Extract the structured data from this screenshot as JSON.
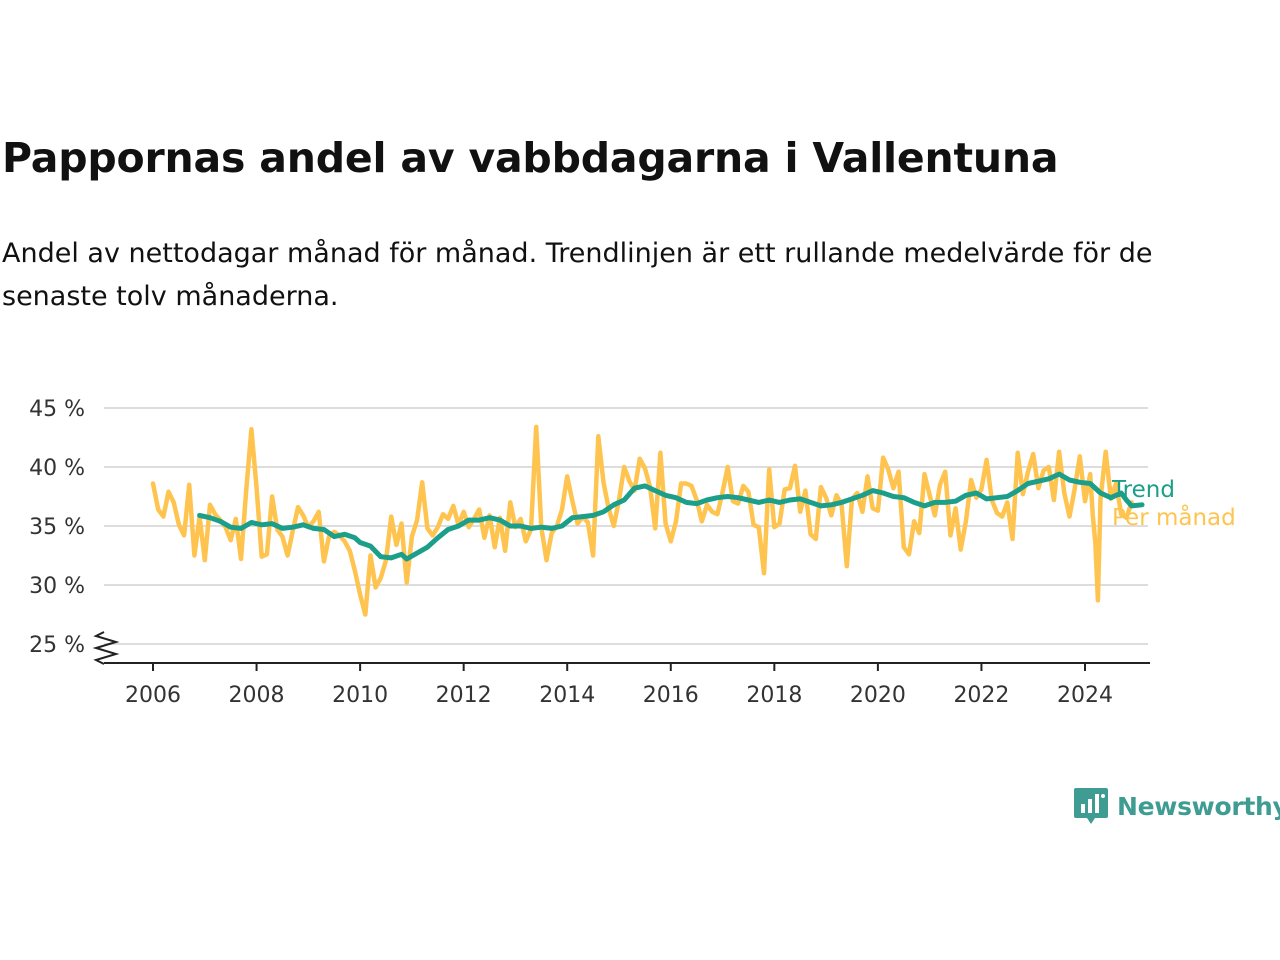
{
  "page": {
    "title": "Pappornas andel av vabbdagarna i Vallentuna",
    "subtitle": "Andel av nettodagar månad för månad. Trendlinjen är ett rullande medelvärde för de senaste tolv månaderna."
  },
  "brand": {
    "name": "Newsworthy",
    "icon": "newsworthy-logo-icon",
    "color": "#3e9c92"
  },
  "chart_data": {
    "type": "line",
    "x_unit": "year",
    "ylim": [
      25,
      45
    ],
    "xlim": [
      2005.7,
      2025.2
    ],
    "y_ticks": [
      {
        "value": 25,
        "label": "25 %"
      },
      {
        "value": 30,
        "label": "30 %"
      },
      {
        "value": 35,
        "label": "35 %"
      },
      {
        "value": 40,
        "label": "40 %"
      },
      {
        "value": 45,
        "label": "45 %"
      }
    ],
    "x_ticks": [
      {
        "value": 2006,
        "label": "2006"
      },
      {
        "value": 2008,
        "label": "2008"
      },
      {
        "value": 2010,
        "label": "2010"
      },
      {
        "value": 2012,
        "label": "2012"
      },
      {
        "value": 2014,
        "label": "2014"
      },
      {
        "value": 2016,
        "label": "2016"
      },
      {
        "value": 2018,
        "label": "2018"
      },
      {
        "value": 2020,
        "label": "2020"
      },
      {
        "value": 2022,
        "label": "2022"
      },
      {
        "value": 2024,
        "label": "2024"
      }
    ],
    "y_axis_break": true,
    "grid": "horizontal",
    "legend": "direct-labels-right",
    "series": [
      {
        "name": "Per månad",
        "color": "#fec44f",
        "points": [
          [
            2006.0,
            38.6
          ],
          [
            2006.1,
            36.4
          ],
          [
            2006.2,
            35.8
          ],
          [
            2006.3,
            37.9
          ],
          [
            2006.4,
            37.0
          ],
          [
            2006.5,
            35.1
          ],
          [
            2006.6,
            34.2
          ],
          [
            2006.7,
            38.5
          ],
          [
            2006.8,
            32.5
          ],
          [
            2006.9,
            35.8
          ],
          [
            2007.0,
            32.1
          ],
          [
            2007.1,
            36.8
          ],
          [
            2007.2,
            36.0
          ],
          [
            2007.3,
            35.5
          ],
          [
            2007.4,
            34.9
          ],
          [
            2007.5,
            33.8
          ],
          [
            2007.6,
            35.6
          ],
          [
            2007.7,
            32.2
          ],
          [
            2007.8,
            38.0
          ],
          [
            2007.9,
            43.2
          ],
          [
            2008.0,
            38.2
          ],
          [
            2008.1,
            32.4
          ],
          [
            2008.2,
            32.6
          ],
          [
            2008.3,
            37.5
          ],
          [
            2008.4,
            34.7
          ],
          [
            2008.5,
            34.1
          ],
          [
            2008.6,
            32.5
          ],
          [
            2008.7,
            34.6
          ],
          [
            2008.8,
            36.6
          ],
          [
            2008.9,
            35.9
          ],
          [
            2009.0,
            34.9
          ],
          [
            2009.1,
            35.4
          ],
          [
            2009.2,
            36.2
          ],
          [
            2009.3,
            32.0
          ],
          [
            2009.4,
            34.1
          ],
          [
            2009.5,
            34.5
          ],
          [
            2009.6,
            34.2
          ],
          [
            2009.7,
            33.7
          ],
          [
            2009.8,
            32.9
          ],
          [
            2009.9,
            31.2
          ],
          [
            2010.0,
            29.2
          ],
          [
            2010.1,
            27.5
          ],
          [
            2010.2,
            32.5
          ],
          [
            2010.3,
            29.8
          ],
          [
            2010.4,
            30.6
          ],
          [
            2010.5,
            32.1
          ],
          [
            2010.6,
            35.8
          ],
          [
            2010.7,
            33.4
          ],
          [
            2010.8,
            35.2
          ],
          [
            2010.9,
            30.2
          ],
          [
            2011.0,
            34.1
          ],
          [
            2011.1,
            35.5
          ],
          [
            2011.2,
            38.7
          ],
          [
            2011.3,
            34.8
          ],
          [
            2011.4,
            34.2
          ],
          [
            2011.5,
            34.9
          ],
          [
            2011.6,
            36.0
          ],
          [
            2011.7,
            35.6
          ],
          [
            2011.8,
            36.7
          ],
          [
            2011.9,
            35.1
          ],
          [
            2012.0,
            36.2
          ],
          [
            2012.1,
            34.9
          ],
          [
            2012.2,
            35.6
          ],
          [
            2012.3,
            36.4
          ],
          [
            2012.4,
            34.0
          ],
          [
            2012.5,
            35.9
          ],
          [
            2012.6,
            33.2
          ],
          [
            2012.7,
            35.7
          ],
          [
            2012.8,
            32.9
          ],
          [
            2012.9,
            37.0
          ],
          [
            2013.0,
            34.9
          ],
          [
            2013.1,
            35.6
          ],
          [
            2013.2,
            33.7
          ],
          [
            2013.3,
            34.7
          ],
          [
            2013.4,
            43.4
          ],
          [
            2013.5,
            34.9
          ],
          [
            2013.6,
            32.1
          ],
          [
            2013.7,
            34.4
          ],
          [
            2013.8,
            35.0
          ],
          [
            2013.9,
            36.4
          ],
          [
            2014.0,
            39.2
          ],
          [
            2014.1,
            37.1
          ],
          [
            2014.2,
            35.2
          ],
          [
            2014.3,
            35.8
          ],
          [
            2014.4,
            35.3
          ],
          [
            2014.5,
            32.5
          ],
          [
            2014.6,
            42.6
          ],
          [
            2014.7,
            38.7
          ],
          [
            2014.8,
            36.5
          ],
          [
            2014.9,
            35.0
          ],
          [
            2015.0,
            37.2
          ],
          [
            2015.1,
            40.0
          ],
          [
            2015.2,
            38.8
          ],
          [
            2015.3,
            38.0
          ],
          [
            2015.4,
            40.7
          ],
          [
            2015.5,
            39.9
          ],
          [
            2015.6,
            38.3
          ],
          [
            2015.7,
            34.8
          ],
          [
            2015.8,
            41.2
          ],
          [
            2015.9,
            35.2
          ],
          [
            2016.0,
            33.7
          ],
          [
            2016.1,
            35.4
          ],
          [
            2016.2,
            38.6
          ],
          [
            2016.3,
            38.6
          ],
          [
            2016.4,
            38.4
          ],
          [
            2016.5,
            37.2
          ],
          [
            2016.6,
            35.4
          ],
          [
            2016.7,
            36.8
          ],
          [
            2016.8,
            36.2
          ],
          [
            2016.9,
            36.0
          ],
          [
            2017.0,
            37.9
          ],
          [
            2017.1,
            40.0
          ],
          [
            2017.2,
            37.1
          ],
          [
            2017.3,
            36.9
          ],
          [
            2017.4,
            38.4
          ],
          [
            2017.5,
            37.9
          ],
          [
            2017.6,
            35.1
          ],
          [
            2017.7,
            34.9
          ],
          [
            2017.8,
            31.0
          ],
          [
            2017.9,
            39.8
          ],
          [
            2018.0,
            34.9
          ],
          [
            2018.1,
            35.2
          ],
          [
            2018.2,
            38.1
          ],
          [
            2018.3,
            38.2
          ],
          [
            2018.4,
            40.1
          ],
          [
            2018.5,
            36.2
          ],
          [
            2018.6,
            38.0
          ],
          [
            2018.7,
            34.3
          ],
          [
            2018.8,
            33.9
          ],
          [
            2018.9,
            38.3
          ],
          [
            2019.0,
            37.4
          ],
          [
            2019.1,
            35.9
          ],
          [
            2019.2,
            37.6
          ],
          [
            2019.3,
            36.8
          ],
          [
            2019.4,
            31.6
          ],
          [
            2019.5,
            37.3
          ],
          [
            2019.6,
            37.8
          ],
          [
            2019.7,
            36.2
          ],
          [
            2019.8,
            39.2
          ],
          [
            2019.9,
            36.5
          ],
          [
            2020.0,
            36.3
          ],
          [
            2020.1,
            40.8
          ],
          [
            2020.2,
            39.8
          ],
          [
            2020.3,
            38.2
          ],
          [
            2020.4,
            39.6
          ],
          [
            2020.5,
            33.2
          ],
          [
            2020.6,
            32.6
          ],
          [
            2020.7,
            35.4
          ],
          [
            2020.8,
            34.4
          ],
          [
            2020.9,
            39.4
          ],
          [
            2021.0,
            37.6
          ],
          [
            2021.1,
            35.9
          ],
          [
            2021.2,
            38.5
          ],
          [
            2021.3,
            39.6
          ],
          [
            2021.4,
            34.2
          ],
          [
            2021.5,
            36.5
          ],
          [
            2021.6,
            33.0
          ],
          [
            2021.7,
            35.4
          ],
          [
            2021.8,
            38.9
          ],
          [
            2021.9,
            37.4
          ],
          [
            2022.0,
            38.1
          ],
          [
            2022.1,
            40.6
          ],
          [
            2022.2,
            37.2
          ],
          [
            2022.3,
            36.1
          ],
          [
            2022.4,
            35.8
          ],
          [
            2022.5,
            37.0
          ],
          [
            2022.6,
            33.9
          ],
          [
            2022.7,
            41.2
          ],
          [
            2022.8,
            37.7
          ],
          [
            2022.9,
            39.6
          ],
          [
            2023.0,
            41.1
          ],
          [
            2023.1,
            38.2
          ],
          [
            2023.2,
            39.7
          ],
          [
            2023.3,
            40.0
          ],
          [
            2023.4,
            37.2
          ],
          [
            2023.5,
            41.3
          ],
          [
            2023.6,
            37.8
          ],
          [
            2023.7,
            35.8
          ],
          [
            2023.8,
            38.1
          ],
          [
            2023.9,
            40.9
          ],
          [
            2024.0,
            37.1
          ],
          [
            2024.1,
            39.4
          ],
          [
            2024.15,
            35.9
          ],
          [
            2024.2,
            33.5
          ],
          [
            2024.25,
            28.7
          ],
          [
            2024.3,
            37.3
          ],
          [
            2024.4,
            41.3
          ],
          [
            2024.5,
            37.3
          ],
          [
            2024.6,
            38.6
          ],
          [
            2024.7,
            36.0
          ],
          [
            2024.8,
            35.7
          ],
          [
            2024.9,
            37.0
          ]
        ]
      },
      {
        "name": "Trend",
        "color": "#1b9e8a",
        "points": [
          [
            2006.9,
            35.9
          ],
          [
            2007.1,
            35.7
          ],
          [
            2007.3,
            35.4
          ],
          [
            2007.5,
            34.9
          ],
          [
            2007.7,
            34.8
          ],
          [
            2007.9,
            35.3
          ],
          [
            2008.1,
            35.1
          ],
          [
            2008.3,
            35.2
          ],
          [
            2008.5,
            34.8
          ],
          [
            2008.7,
            34.9
          ],
          [
            2008.9,
            35.1
          ],
          [
            2009.1,
            34.8
          ],
          [
            2009.3,
            34.7
          ],
          [
            2009.5,
            34.1
          ],
          [
            2009.7,
            34.3
          ],
          [
            2009.9,
            34.0
          ],
          [
            2010.0,
            33.6
          ],
          [
            2010.2,
            33.3
          ],
          [
            2010.4,
            32.4
          ],
          [
            2010.6,
            32.3
          ],
          [
            2010.8,
            32.6
          ],
          [
            2010.9,
            32.2
          ],
          [
            2011.1,
            32.7
          ],
          [
            2011.3,
            33.2
          ],
          [
            2011.5,
            34.0
          ],
          [
            2011.7,
            34.7
          ],
          [
            2011.9,
            35.0
          ],
          [
            2012.1,
            35.5
          ],
          [
            2012.3,
            35.5
          ],
          [
            2012.5,
            35.7
          ],
          [
            2012.7,
            35.5
          ],
          [
            2012.9,
            35.0
          ],
          [
            2013.1,
            35.0
          ],
          [
            2013.3,
            34.8
          ],
          [
            2013.5,
            34.9
          ],
          [
            2013.7,
            34.8
          ],
          [
            2013.9,
            35.0
          ],
          [
            2014.1,
            35.7
          ],
          [
            2014.3,
            35.8
          ],
          [
            2014.5,
            35.9
          ],
          [
            2014.7,
            36.2
          ],
          [
            2014.9,
            36.8
          ],
          [
            2015.1,
            37.2
          ],
          [
            2015.3,
            38.2
          ],
          [
            2015.5,
            38.4
          ],
          [
            2015.7,
            38.0
          ],
          [
            2015.9,
            37.6
          ],
          [
            2016.1,
            37.4
          ],
          [
            2016.3,
            37.0
          ],
          [
            2016.5,
            36.9
          ],
          [
            2016.7,
            37.2
          ],
          [
            2016.9,
            37.4
          ],
          [
            2017.1,
            37.5
          ],
          [
            2017.3,
            37.4
          ],
          [
            2017.5,
            37.2
          ],
          [
            2017.7,
            37.0
          ],
          [
            2017.9,
            37.2
          ],
          [
            2018.1,
            37.0
          ],
          [
            2018.3,
            37.2
          ],
          [
            2018.5,
            37.3
          ],
          [
            2018.7,
            37.0
          ],
          [
            2018.9,
            36.7
          ],
          [
            2019.1,
            36.8
          ],
          [
            2019.3,
            37.0
          ],
          [
            2019.5,
            37.3
          ],
          [
            2019.7,
            37.6
          ],
          [
            2019.9,
            38.0
          ],
          [
            2020.1,
            37.8
          ],
          [
            2020.3,
            37.5
          ],
          [
            2020.5,
            37.4
          ],
          [
            2020.7,
            37.0
          ],
          [
            2020.9,
            36.7
          ],
          [
            2021.1,
            37.0
          ],
          [
            2021.3,
            37.0
          ],
          [
            2021.5,
            37.1
          ],
          [
            2021.7,
            37.6
          ],
          [
            2021.9,
            37.8
          ],
          [
            2022.1,
            37.3
          ],
          [
            2022.3,
            37.4
          ],
          [
            2022.5,
            37.5
          ],
          [
            2022.7,
            38.0
          ],
          [
            2022.9,
            38.6
          ],
          [
            2023.1,
            38.8
          ],
          [
            2023.3,
            39.0
          ],
          [
            2023.5,
            39.4
          ],
          [
            2023.7,
            38.9
          ],
          [
            2023.9,
            38.7
          ],
          [
            2024.1,
            38.6
          ],
          [
            2024.3,
            37.8
          ],
          [
            2024.5,
            37.4
          ],
          [
            2024.7,
            37.8
          ],
          [
            2024.8,
            37.2
          ],
          [
            2024.9,
            36.7
          ],
          [
            2025.1,
            36.8
          ]
        ]
      }
    ]
  }
}
